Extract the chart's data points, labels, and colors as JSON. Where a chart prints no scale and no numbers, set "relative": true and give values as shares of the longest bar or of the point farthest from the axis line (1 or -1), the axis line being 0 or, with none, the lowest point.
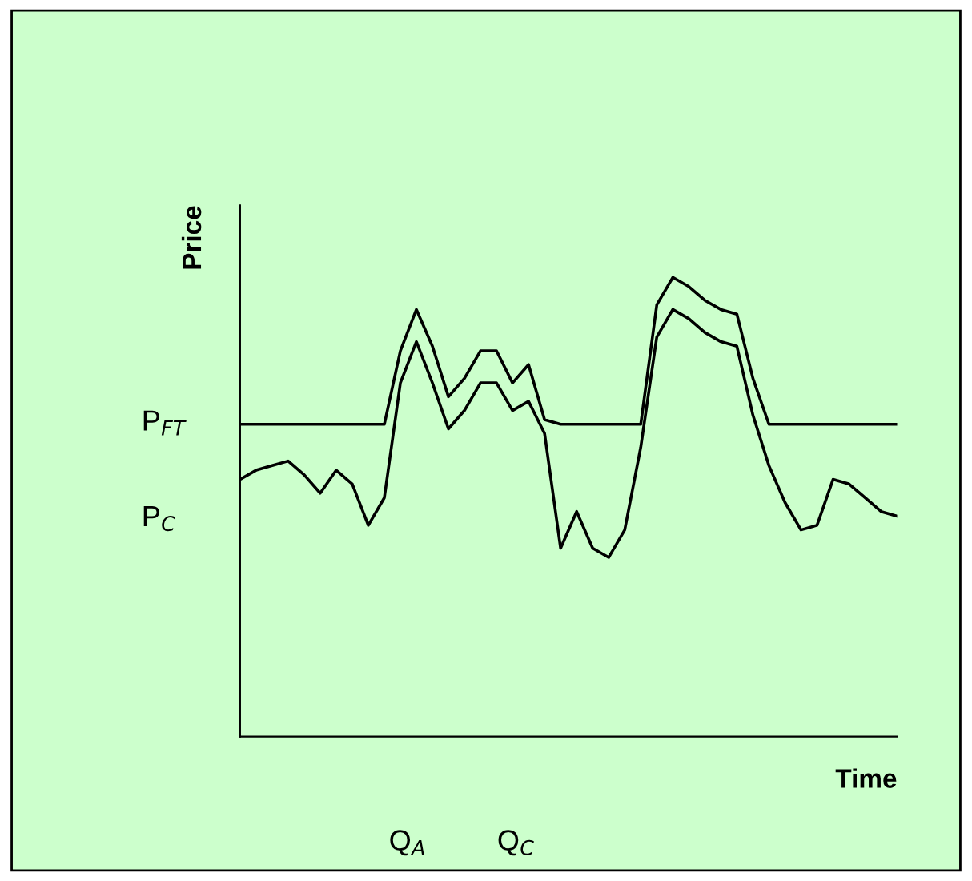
{
  "chart_data": {
    "type": "line",
    "relative": true,
    "xlabel": "Time",
    "ylabel": "Price",
    "categories": [
      null,
      null,
      null,
      null,
      null,
      null,
      null,
      null,
      null,
      null,
      null,
      null,
      null,
      null,
      null,
      null,
      null,
      null,
      null,
      null,
      null,
      null,
      null,
      null,
      null,
      null,
      null,
      null,
      null,
      null,
      null,
      null,
      null,
      null,
      null,
      null,
      null,
      null,
      null,
      null,
      null,
      null
    ],
    "series": [
      {
        "color": "#000000",
        "values": [
          0.68,
          0.68,
          0.68,
          0.68,
          0.68,
          0.68,
          0.68,
          0.68,
          0.68,
          0.68,
          0.84,
          0.93,
          0.85,
          0.74,
          0.78,
          0.84,
          0.84,
          0.77,
          0.81,
          0.69,
          0.68,
          0.68,
          0.68,
          0.68,
          0.68,
          0.68,
          0.94,
          1.0,
          0.98,
          0.95,
          0.93,
          0.92,
          0.78,
          0.68,
          0.68,
          0.68,
          0.68,
          0.68,
          0.68,
          0.68,
          0.68,
          0.68
        ]
      },
      {
        "color": "#000000",
        "values": [
          0.56,
          0.58,
          0.59,
          0.6,
          0.57,
          0.53,
          0.58,
          0.55,
          0.46,
          0.52,
          0.77,
          0.86,
          0.77,
          0.67,
          0.71,
          0.77,
          0.77,
          0.71,
          0.73,
          0.66,
          0.41,
          0.49,
          0.41,
          0.39,
          0.45,
          0.63,
          0.87,
          0.93,
          0.91,
          0.88,
          0.86,
          0.85,
          0.7,
          0.59,
          0.51,
          0.45,
          0.46,
          0.56,
          0.55,
          0.52,
          0.49,
          0.48
        ]
      }
    ],
    "annotations": [
      "P$_{FT}$",
      "P$_{C}$",
      "Q$_{A}$",
      "Q$_{C}$"
    ],
    "legend": false,
    "marker": "none",
    "line_style": "solid"
  }
}
